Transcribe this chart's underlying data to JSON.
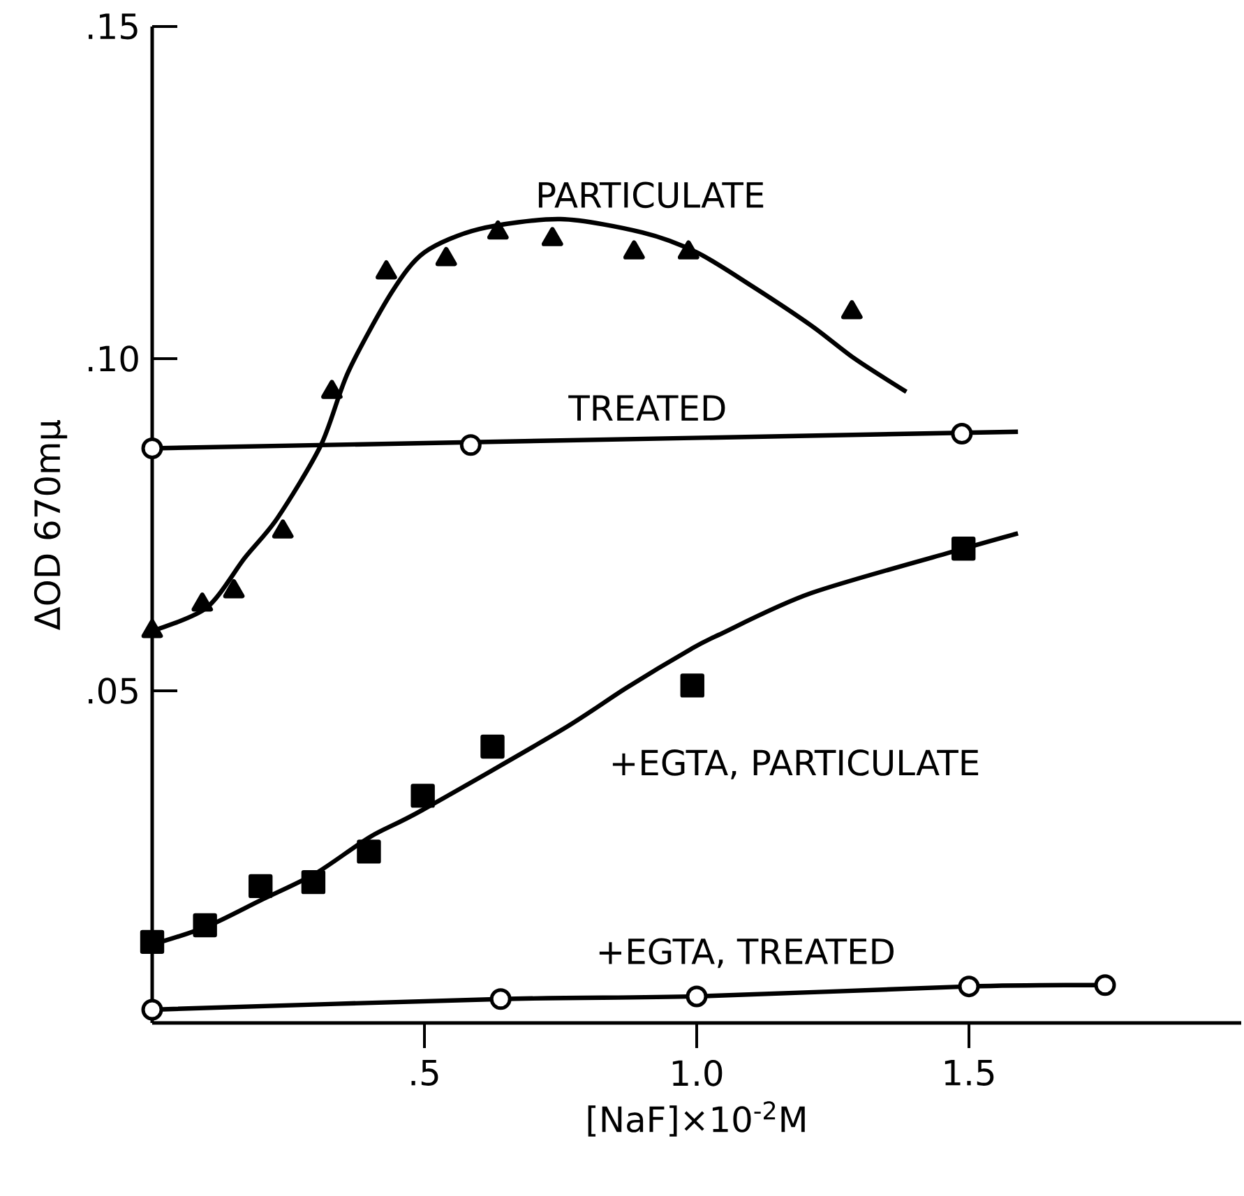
{
  "chart_data": {
    "type": "scatter",
    "xlabel": "[NaF]×10$^{-2}$M",
    "ylabel": "ΔOD 670mμ",
    "xlim": [
      0,
      2.0
    ],
    "ylim": [
      0,
      0.15
    ],
    "xticks": [
      {
        "value": 0.5,
        "label": ".5"
      },
      {
        "value": 1.0,
        "label": "1.0"
      },
      {
        "value": 1.5,
        "label": "1.5"
      }
    ],
    "yticks": [
      {
        "value": 0.05,
        "label": ".05"
      },
      {
        "value": 0.1,
        "label": ".10"
      },
      {
        "value": 0.15,
        "label": ".15"
      }
    ],
    "series": [
      {
        "type": "line",
        "name": "PARTICULATE",
        "marker": "none",
        "color": "#000000",
        "x": [
          0,
          0.1,
          0.17,
          0.23,
          0.31,
          0.36,
          0.44,
          0.5,
          0.6,
          0.75,
          0.9,
          1.0,
          1.1,
          1.21,
          1.29,
          1.385
        ],
        "values": [
          0.059,
          0.0625,
          0.07,
          0.076,
          0.087,
          0.098,
          0.11,
          0.116,
          0.1195,
          0.121,
          0.119,
          0.116,
          0.111,
          0.105,
          0.1,
          0.095
        ]
      },
      {
        "marker": "triangle",
        "color": "#000000",
        "x": [
          0,
          0.092,
          0.15,
          0.24,
          0.33,
          0.43,
          0.54,
          0.635,
          0.735,
          0.885,
          0.985,
          1.285
        ],
        "values": [
          0.059,
          0.063,
          0.065,
          0.074,
          0.095,
          0.113,
          0.115,
          0.119,
          0.118,
          0.116,
          0.116,
          0.107
        ]
      },
      {
        "type": "line",
        "name": "TREATED",
        "marker": "none",
        "color": "#000000",
        "x": [
          0,
          1.59
        ],
        "values": [
          0.0865,
          0.089
        ]
      },
      {
        "marker": "circle",
        "color": "#000000",
        "x": [
          0,
          0.585,
          1.487
        ],
        "values": [
          0.0865,
          0.087,
          0.0887
        ]
      },
      {
        "type": "line",
        "name": "+EGTA, PARTICULATE",
        "marker": "none",
        "color": "#000000",
        "x": [
          0,
          0.1,
          0.2,
          0.3,
          0.4,
          0.495,
          0.75,
          0.87,
          0.99,
          1.04,
          1.21,
          1.49,
          1.59
        ],
        "values": [
          0.0118,
          0.0145,
          0.0185,
          0.0225,
          0.028,
          0.032,
          0.044,
          0.0504,
          0.0563,
          0.0584,
          0.0647,
          0.0714,
          0.0737
        ]
      },
      {
        "marker": "square",
        "color": "#000000",
        "x": [
          0,
          0.097,
          0.199,
          0.296,
          0.398,
          0.497,
          0.625,
          0.992,
          1.49
        ],
        "values": [
          0.0122,
          0.0147,
          0.0206,
          0.0212,
          0.0258,
          0.0342,
          0.0416,
          0.0508,
          0.0714
        ]
      },
      {
        "type": "line",
        "name": "+EGTA, TREATED",
        "marker": "circle",
        "color": "#000000",
        "x": [
          0,
          0.64,
          1.0,
          1.5,
          1.75
        ],
        "values": [
          0.002,
          0.0036,
          0.004,
          0.0055,
          0.0057
        ]
      }
    ]
  }
}
